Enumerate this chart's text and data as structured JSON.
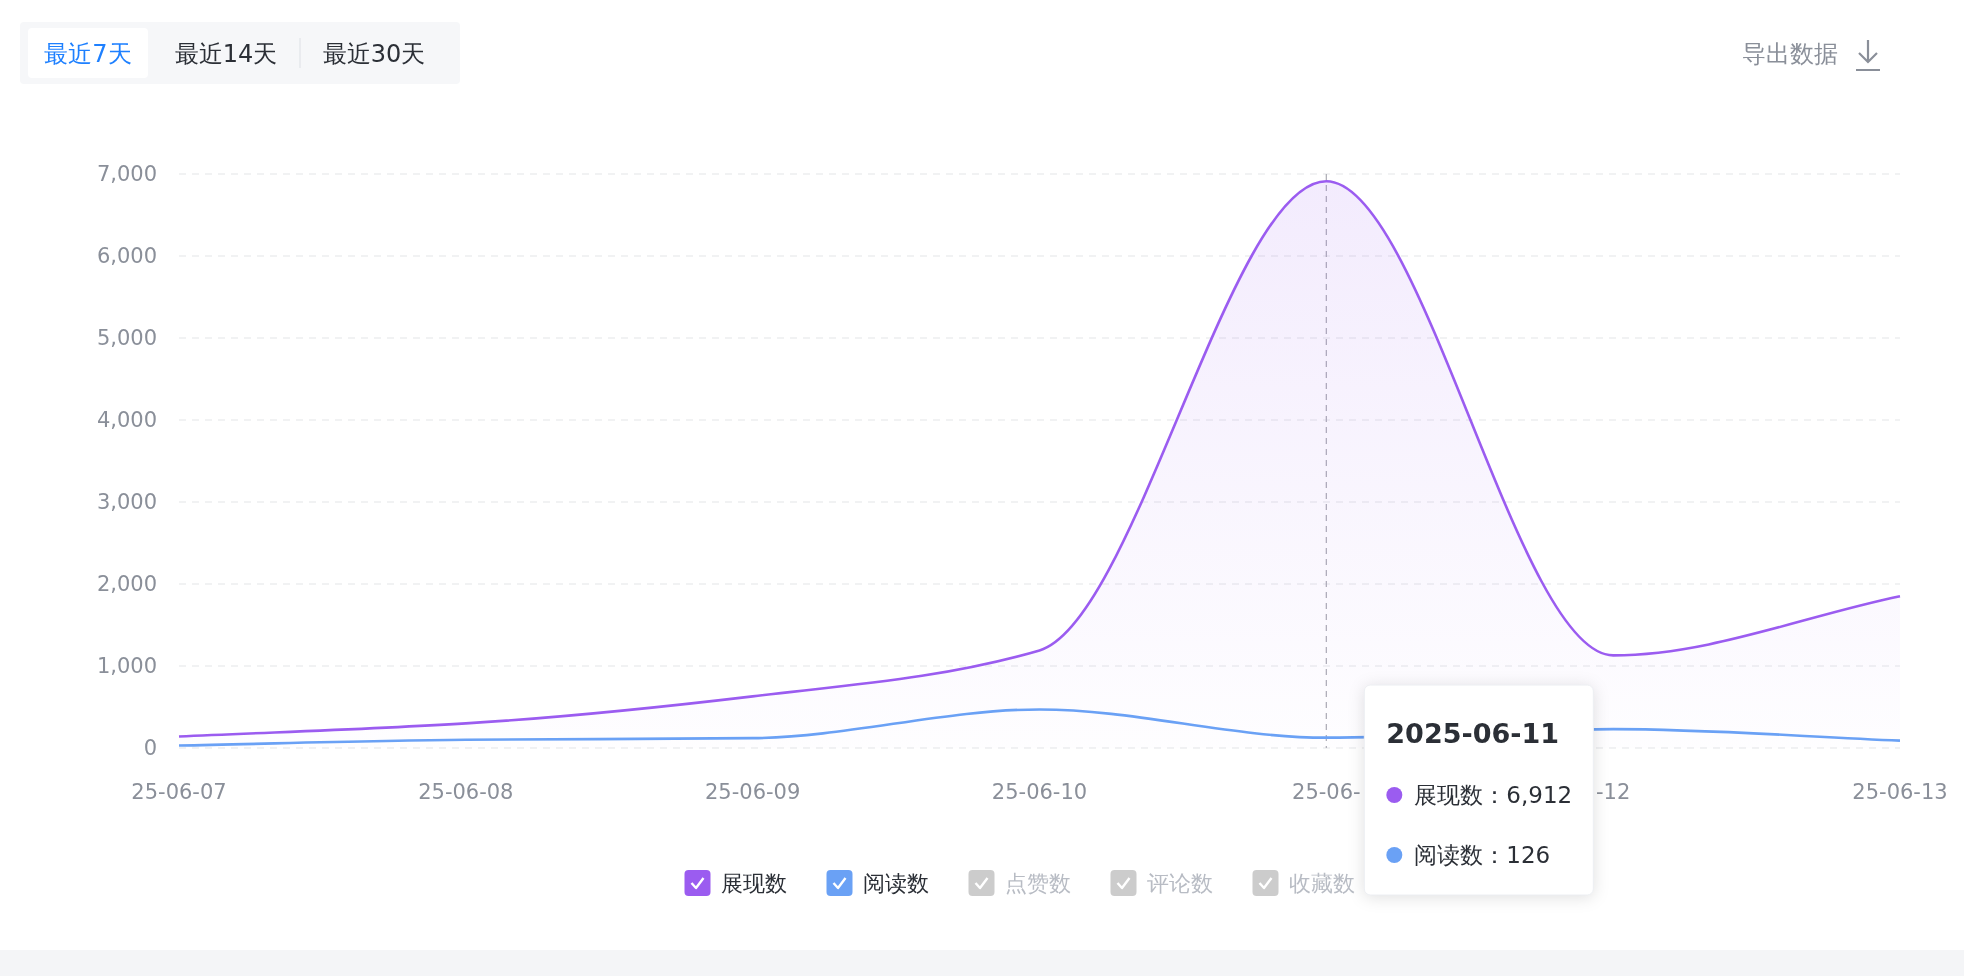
{
  "chart_data": {
    "type": "area",
    "x": [
      "2025-06-07",
      "2025-06-08",
      "2025-06-09",
      "2025-06-10",
      "2025-06-11",
      "2025-06-12",
      "2025-06-13"
    ],
    "series": [
      {
        "name": "展现数",
        "color": "#9b5cf0",
        "values": [
          140,
          300,
          630,
          1190,
          6912,
          1130,
          1850
        ]
      },
      {
        "name": "阅读数",
        "type": "line",
        "color": "#6aa1f5",
        "values": [
          30,
          100,
          120,
          470,
          126,
          230,
          90
        ]
      },
      {
        "name": "点赞数",
        "color": "#cccccc",
        "values": [
          null,
          null,
          null,
          null,
          null,
          null,
          null
        ]
      },
      {
        "name": "评论数",
        "color": "#cccccc",
        "values": [
          null,
          null,
          null,
          null,
          null,
          null,
          null
        ]
      },
      {
        "name": "收藏数",
        "color": "#cccccc",
        "values": [
          null,
          null,
          null,
          null,
          null,
          null,
          null
        ]
      }
    ],
    "xlim": [
      "2025-06-07",
      "2025-06-13"
    ],
    "xticks": [
      {
        "value": "2025-06-07",
        "label": "25-06-07"
      },
      {
        "value": "2025-06-08",
        "label": "25-06-08"
      },
      {
        "value": "2025-06-09",
        "label": "25-06-09"
      },
      {
        "value": "2025-06-10",
        "label": "25-06-10"
      },
      {
        "value": "2025-06-11",
        "label": "25-06-"
      },
      {
        "value": "2025-06-12",
        "label": "-12"
      },
      {
        "value": "2025-06-13",
        "label": "25-06-13"
      }
    ],
    "ylim": [
      0,
      7000
    ],
    "yticks": [
      0,
      {
        "value": 1000,
        "label": "1,000"
      },
      {
        "value": 2000,
        "label": "2,000"
      },
      {
        "value": 3000,
        "label": "3,000"
      },
      {
        "value": 4000,
        "label": "4,000"
      },
      {
        "value": 5000,
        "label": "5,000"
      },
      {
        "value": 6000,
        "label": "6,000"
      },
      {
        "value": 7000,
        "label": "7,000"
      }
    ],
    "grid": "y",
    "legend": "bottom",
    "marker": "none",
    "ref_lines": [
      {
        "axis": "x",
        "value": "2025-06-11",
        "color": "#b0b0b8",
        "line_style": "dashed"
      }
    ],
    "annotations": [
      "最近7天",
      "最近14天",
      "最近30天",
      "导出数据",
      "2025-06-11",
      "展现数：6,912",
      "阅读数：126"
    ]
  }
}
